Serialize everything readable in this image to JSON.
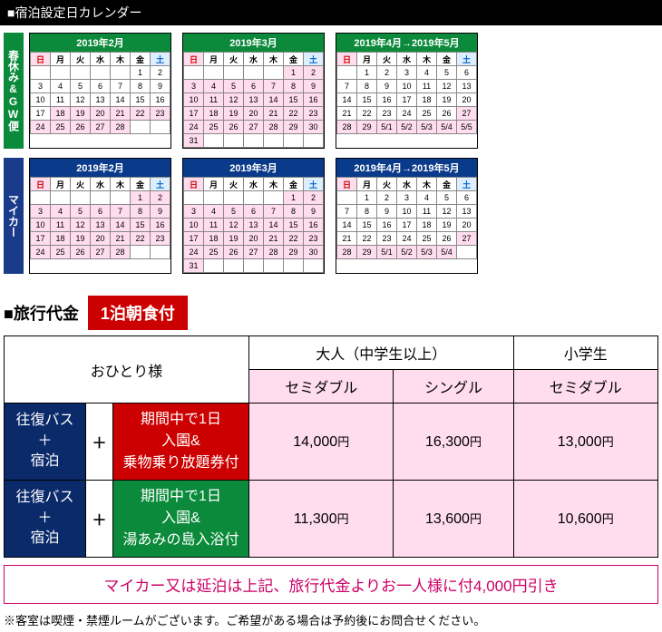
{
  "header": "■宿泊設定日カレンダー",
  "tabs": {
    "spring": "春休み&GW便",
    "mycar": "マイカー"
  },
  "dow": [
    "日",
    "月",
    "火",
    "水",
    "木",
    "金",
    "土"
  ],
  "calendars": {
    "spring": [
      {
        "title": "2019年2月",
        "leading": 5,
        "start": 1,
        "end": 28,
        "hl": [
          18,
          19,
          20,
          21,
          22,
          23,
          24,
          25,
          26,
          27,
          28
        ],
        "texts": {}
      },
      {
        "title": "2019年3月",
        "leading": 5,
        "start": 1,
        "end": 31,
        "hl": "all",
        "texts": {}
      },
      {
        "title": "2019年4月→2019年5月",
        "leading": 1,
        "start": 1,
        "end": 34,
        "hl": [
          27,
          28,
          29,
          30,
          31,
          32,
          33,
          34
        ],
        "texts": {
          "30": "5/1",
          "31": "5/2",
          "32": "5/3",
          "33": "5/4",
          "34": "5/5"
        }
      }
    ],
    "mycar": [
      {
        "title": "2019年2月",
        "leading": 5,
        "start": 1,
        "end": 28,
        "hl": "all",
        "texts": {}
      },
      {
        "title": "2019年3月",
        "leading": 5,
        "start": 1,
        "end": 31,
        "hl": "all",
        "texts": {}
      },
      {
        "title": "2019年4月→2019年5月",
        "leading": 1,
        "start": 1,
        "end": 33,
        "hl": [
          27,
          28,
          29,
          30,
          31,
          32,
          33
        ],
        "texts": {
          "30": "5/1",
          "31": "5/2",
          "32": "5/3",
          "33": "5/4"
        }
      }
    ]
  },
  "sectionTitle": "■旅行代金",
  "redBadge": "1泊朝食付",
  "priceTable": {
    "header1": "おひとり様",
    "header2": "大人（中学生以上）",
    "header3": "小学生",
    "sub1": "セミダブル",
    "sub2": "シングル",
    "sub3": "セミダブル",
    "navy": "往復バス\n＋\n宿泊",
    "plus": "＋",
    "redBox": "期間中で1日\n入園&\n乗物乗り放題券付",
    "greenBox": "期間中で1日\n入園&\n湯あみの島入浴付",
    "row1": {
      "p1": "14,000",
      "p2": "16,300",
      "p3": "13,000"
    },
    "row2": {
      "p1": "11,300",
      "p2": "13,600",
      "p3": "10,600"
    },
    "yen": "円"
  },
  "noteBox": "マイカー又は延泊は上記、旅行代金よりお一人様に付4,000円引き",
  "footnote": "※客室は喫煙・禁煙ルームがございます。ご希望がある場合は予約後にお問合せください。"
}
